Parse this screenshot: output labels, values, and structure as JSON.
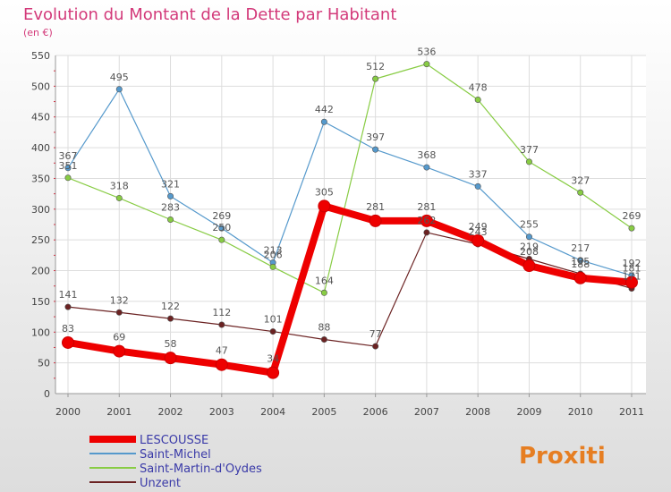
{
  "chart_data": {
    "type": "line",
    "title": "Evolution du Montant de la Dette par Habitant",
    "subtitle": "(en €)",
    "x": [
      "2000",
      "2001",
      "2002",
      "2003",
      "2004",
      "2005",
      "2006",
      "2007",
      "2008",
      "2009",
      "2010",
      "2011"
    ],
    "ylim": [
      0,
      550
    ],
    "yticks": [
      0,
      50,
      100,
      150,
      200,
      250,
      300,
      350,
      400,
      450,
      500,
      550
    ],
    "grid": true,
    "legend_position": "bottom-left",
    "series": [
      {
        "name": "LESCOUSSE",
        "color": "#ee0000",
        "values": [
          83,
          69,
          58,
          47,
          34,
          305,
          281,
          281,
          249,
          208,
          188,
          181
        ]
      },
      {
        "name": "Saint-Michel",
        "color": "#5599cc",
        "values": [
          367,
          495,
          321,
          269,
          213,
          442,
          397,
          368,
          337,
          255,
          217,
          192
        ]
      },
      {
        "name": "Saint-Martin-d'Oydes",
        "color": "#88cc44",
        "values": [
          351,
          318,
          283,
          250,
          206,
          164,
          512,
          536,
          478,
          377,
          327,
          269
        ]
      },
      {
        "name": "Unzent",
        "color": "#6b2222",
        "values": [
          141,
          132,
          122,
          112,
          101,
          88,
          77,
          262,
          243,
          219,
          195,
          171
        ]
      }
    ]
  },
  "logo": {
    "text": "Proxiti"
  }
}
